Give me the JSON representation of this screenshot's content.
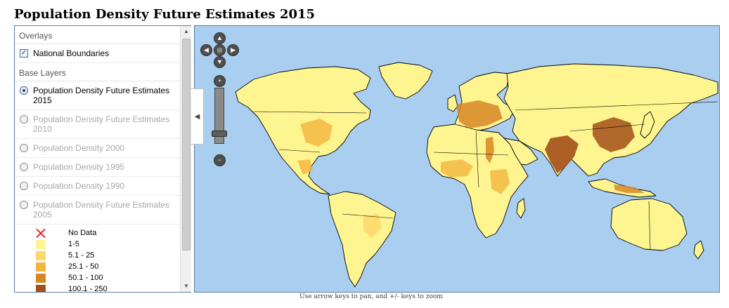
{
  "page": {
    "title": "Population Density Future Estimates 2015"
  },
  "layer_switcher": {
    "overlays_heading": "Overlays",
    "overlays": [
      {
        "label": "National Boundaries",
        "checked": true
      }
    ],
    "base_heading": "Base Layers",
    "base_layers": [
      {
        "label": "Population Density Future Estimates 2015",
        "selected": true,
        "enabled": true
      },
      {
        "label": "Population Density Future Estimates 2010",
        "selected": false,
        "enabled": false
      },
      {
        "label": "Population Density 2000",
        "selected": false,
        "enabled": false
      },
      {
        "label": "Population Density 1995",
        "selected": false,
        "enabled": false
      },
      {
        "label": "Population Density 1990",
        "selected": false,
        "enabled": false
      },
      {
        "label": "Population Density Future Estimates 2005",
        "selected": false,
        "enabled": false
      }
    ]
  },
  "legend": {
    "items": [
      {
        "label": "No Data",
        "color": "#e03030",
        "marker": "cross"
      },
      {
        "label": "1-5",
        "color": "#fff590"
      },
      {
        "label": "5.1 - 25",
        "color": "#fcd76a"
      },
      {
        "label": "25.1 - 50",
        "color": "#f4b53f"
      },
      {
        "label": "50.1 - 100",
        "color": "#d88626"
      },
      {
        "label": "100.1 - 250",
        "color": "#a3501a"
      }
    ]
  },
  "map": {
    "ocean_color": "#a9cef0",
    "land_color": "#fff590",
    "boundary_color": "#000000",
    "controls": {
      "pan_up_icon": "arrow-up-icon",
      "pan_down_icon": "arrow-down-icon",
      "pan_left_icon": "arrow-left-icon",
      "pan_right_icon": "arrow-right-icon",
      "world_icon": "globe-icon",
      "zoom_in_symbol": "+",
      "zoom_out_symbol": "−"
    }
  },
  "footer": {
    "hint": "Use arrow keys to pan, and +/- keys to zoom"
  }
}
